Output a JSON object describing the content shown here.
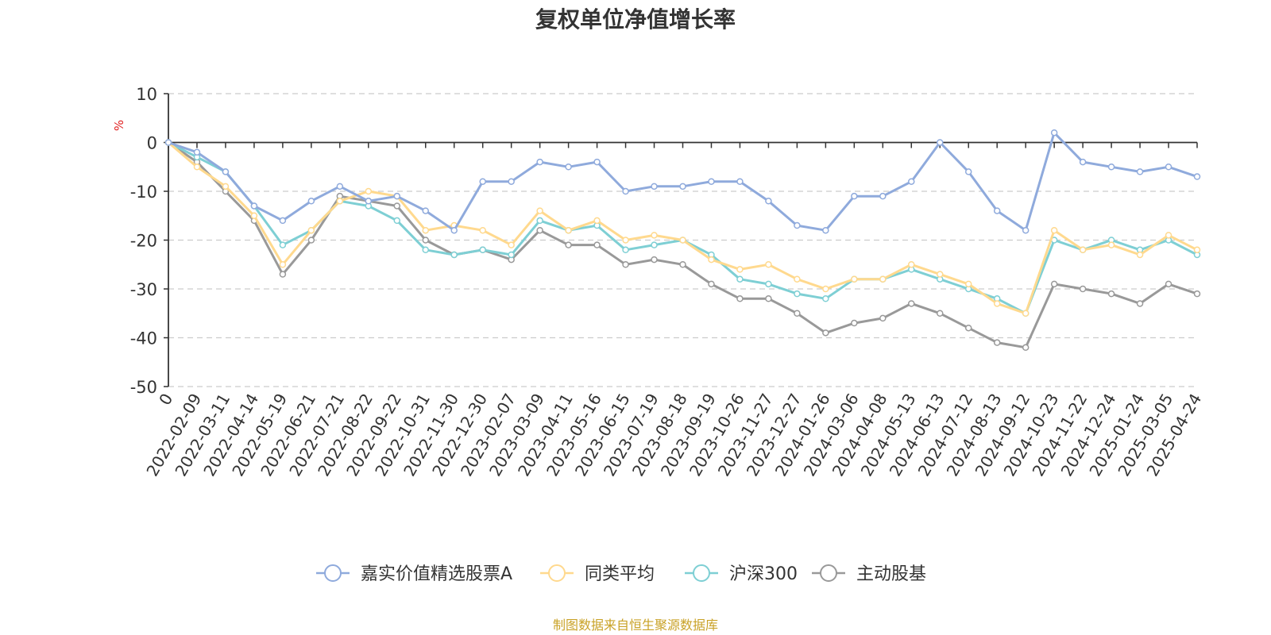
{
  "chart_data": {
    "type": "line",
    "title": "复权单位净值增长率",
    "y_unit": "%",
    "ylim": [
      -50,
      10
    ],
    "yticks": [
      10,
      0,
      -10,
      -20,
      -30,
      -40,
      -50
    ],
    "grid": "horizontal dashed",
    "legend_position": "bottom",
    "x_tick_labels": [
      "0",
      "2022-02-09",
      "2022-03-11",
      "2022-04-14",
      "2022-05-19",
      "2022-06-21",
      "2022-07-21",
      "2022-08-22",
      "2022-09-22",
      "2022-10-31",
      "2022-11-30",
      "2022-12-30",
      "2023-02-07",
      "2023-03-09",
      "2023-04-11",
      "2023-05-16",
      "2023-06-15",
      "2023-07-19",
      "2023-08-18",
      "2023-09-19",
      "2023-10-26",
      "2023-11-27",
      "2023-12-27",
      "2024-01-26",
      "2024-03-06",
      "2024-04-08",
      "2024-05-13",
      "2024-06-13",
      "2024-07-12",
      "2024-08-13",
      "2024-09-12",
      "2024-10-23",
      "2024-11-22",
      "2024-12-24",
      "2025-01-24",
      "2025-03-05",
      "2025-04-24"
    ],
    "x": [
      0,
      1,
      2,
      3,
      4,
      5,
      6,
      7,
      8,
      9,
      10,
      11,
      12,
      13,
      14,
      15,
      16,
      17,
      18,
      19,
      20,
      21,
      22,
      23,
      24,
      25,
      26,
      27,
      28,
      29,
      30,
      31,
      32,
      33,
      34,
      35,
      36
    ],
    "series": [
      {
        "name": "嘉实价值精选股票A",
        "color": "#8faadc",
        "values": [
          0,
          -2,
          -6,
          -13,
          -16,
          -12,
          -9,
          -12,
          -11,
          -14,
          -18,
          -8,
          -8,
          -4,
          -5,
          -4,
          -10,
          -9,
          -9,
          -8,
          -8,
          -12,
          -17,
          -18,
          -11,
          -11,
          -8,
          0,
          -6,
          -14,
          -18,
          2,
          -4,
          -5,
          -6,
          -5,
          -7
        ]
      },
      {
        "name": "同类平均",
        "color": "#ffd98e",
        "values": [
          0,
          -5,
          -9,
          -15,
          -25,
          -18,
          -12,
          -10,
          -11,
          -18,
          -17,
          -18,
          -21,
          -14,
          -18,
          -16,
          -20,
          -19,
          -20,
          -24,
          -26,
          -25,
          -28,
          -30,
          -28,
          -28,
          -25,
          -27,
          -29,
          -33,
          -35,
          -18,
          -22,
          -21,
          -23,
          -19,
          -22
        ]
      },
      {
        "name": "沪深300",
        "color": "#7ecfd4",
        "values": [
          0,
          -3,
          -6,
          -13,
          -21,
          -18,
          -12,
          -13,
          -16,
          -22,
          -23,
          -22,
          -23,
          -16,
          -18,
          -17,
          -22,
          -21,
          -20,
          -23,
          -28,
          -29,
          -31,
          -32,
          -28,
          -28,
          -26,
          -28,
          -30,
          -32,
          -35,
          -20,
          -22,
          -20,
          -22,
          -20,
          -23
        ]
      },
      {
        "name": "主动股基",
        "color": "#999999",
        "values": [
          0,
          -4,
          -10,
          -16,
          -27,
          -20,
          -11,
          -12,
          -13,
          -20,
          -23,
          -22,
          -24,
          -18,
          -21,
          -21,
          -25,
          -24,
          -25,
          -29,
          -32,
          -32,
          -35,
          -39,
          -37,
          -36,
          -33,
          -35,
          -38,
          -41,
          -42,
          -29,
          -30,
          -31,
          -33,
          -29,
          -31
        ]
      }
    ]
  },
  "source_note": {
    "text": "制图数据来自恒生聚源数据库",
    "color": "#c9a227"
  },
  "unit_color": "#e02020"
}
